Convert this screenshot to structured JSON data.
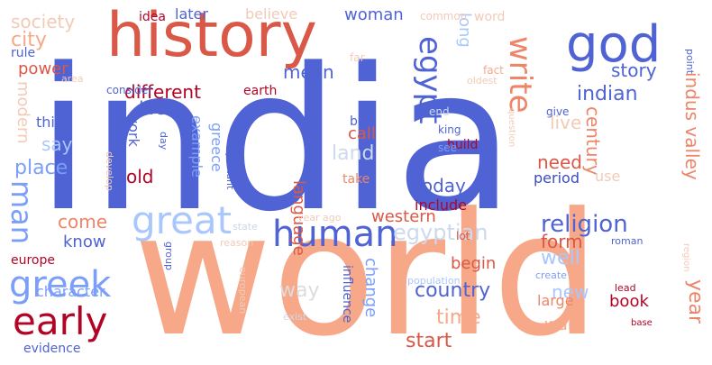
{
  "colors": {
    "blue_dark": "#3b4cc0",
    "blue": "#4f63d4",
    "blue_mid": "#7b9ff9",
    "blue_light": "#aac7fd",
    "blue_pale": "#cdd9ec",
    "grey": "#dddcdc",
    "peach_pale": "#f2cbb7",
    "peach": "#f7a889",
    "salmon": "#ee8468",
    "red": "#d95847",
    "red_dark": "#b40426"
  },
  "words": [
    {
      "text": "india",
      "color": "blue",
      "weight": 100
    },
    {
      "text": "world",
      "color": "peach",
      "weight": 88
    },
    {
      "text": "history",
      "color": "red",
      "weight": 40
    },
    {
      "text": "god",
      "color": "blue",
      "weight": 30
    },
    {
      "text": "human",
      "color": "blue",
      "weight": 22
    },
    {
      "text": "great",
      "color": "blue_light",
      "weight": 22
    },
    {
      "text": "greek",
      "color": "blue_mid",
      "weight": 19
    },
    {
      "text": "early",
      "color": "red_dark",
      "weight": 19
    },
    {
      "text": "egypt",
      "color": "blue",
      "weight": 18
    },
    {
      "text": "write",
      "color": "salmon",
      "weight": 18
    },
    {
      "text": "man",
      "color": "blue_mid",
      "weight": 17
    },
    {
      "text": "religion",
      "color": "blue",
      "weight": 13
    },
    {
      "text": "egyptian",
      "color": "blue_pale",
      "weight": 12
    },
    {
      "text": "different",
      "color": "red_dark",
      "weight": 11
    },
    {
      "text": "country",
      "color": "blue",
      "weight": 11
    },
    {
      "text": "indian",
      "color": "blue",
      "weight": 11
    },
    {
      "text": "society",
      "color": "peach_pale",
      "weight": 11
    },
    {
      "text": "city",
      "color": "peach",
      "weight": 11
    },
    {
      "text": "western",
      "color": "red",
      "weight": 10
    },
    {
      "text": "mean",
      "color": "blue",
      "weight": 10
    },
    {
      "text": "way",
      "color": "grey",
      "weight": 10
    },
    {
      "text": "start",
      "color": "red",
      "weight": 10
    },
    {
      "text": "today",
      "color": "blue",
      "weight": 10
    },
    {
      "text": "language",
      "color": "red",
      "weight": 10
    },
    {
      "text": "woman",
      "color": "blue",
      "weight": 9
    },
    {
      "text": "power",
      "color": "red",
      "weight": 9
    },
    {
      "text": "old",
      "color": "red_dark",
      "weight": 9
    },
    {
      "text": "life",
      "color": "blue",
      "weight": 9
    },
    {
      "text": "place",
      "color": "blue_mid",
      "weight": 9
    },
    {
      "text": "come",
      "color": "salmon",
      "weight": 9
    },
    {
      "text": "know",
      "color": "blue",
      "weight": 9
    },
    {
      "text": "story",
      "color": "blue",
      "weight": 9
    },
    {
      "text": "land",
      "color": "blue_pale",
      "weight": 9
    },
    {
      "text": "form",
      "color": "red",
      "weight": 9
    },
    {
      "text": "time",
      "color": "peach",
      "weight": 9
    },
    {
      "text": "need",
      "color": "red",
      "weight": 9
    },
    {
      "text": "well",
      "color": "blue_light",
      "weight": 9
    },
    {
      "text": "new",
      "color": "blue_light",
      "weight": 9
    },
    {
      "text": "live",
      "color": "peach_pale",
      "weight": 9
    },
    {
      "text": "year",
      "color": "salmon",
      "weight": 9
    },
    {
      "text": "begin",
      "color": "red",
      "weight": 8
    },
    {
      "text": "say",
      "color": "blue_light",
      "weight": 8
    },
    {
      "text": "century",
      "color": "salmon",
      "weight": 8
    },
    {
      "text": "indus valley",
      "color": "salmon",
      "weight": 8
    },
    {
      "text": "change",
      "color": "blue_mid",
      "weight": 8
    },
    {
      "text": "example",
      "color": "blue_mid",
      "weight": 8
    },
    {
      "text": "greece",
      "color": "blue_mid",
      "weight": 8
    },
    {
      "text": "work",
      "color": "blue",
      "weight": 8
    },
    {
      "text": "long",
      "color": "blue_light",
      "weight": 8
    },
    {
      "text": "modern",
      "color": "peach_pale",
      "weight": 8
    },
    {
      "text": "believe",
      "color": "peach_pale",
      "weight": 7
    },
    {
      "text": "character",
      "color": "blue_mid",
      "weight": 7
    },
    {
      "text": "period",
      "color": "blue_dark",
      "weight": 7
    },
    {
      "text": "large",
      "color": "salmon",
      "weight": 7
    },
    {
      "text": "war",
      "color": "peach",
      "weight": 7
    },
    {
      "text": "call",
      "color": "red",
      "weight": 7
    },
    {
      "text": "book",
      "color": "red_dark",
      "weight": 7
    },
    {
      "text": "include",
      "color": "red_dark",
      "weight": 7
    },
    {
      "text": "thing",
      "color": "blue",
      "weight": 7
    },
    {
      "text": "word",
      "color": "peach_pale",
      "weight": 6
    },
    {
      "text": "europe",
      "color": "red_dark",
      "weight": 6
    },
    {
      "text": "idea",
      "color": "red_dark",
      "weight": 6
    },
    {
      "text": "later",
      "color": "blue",
      "weight": 6
    },
    {
      "text": "rule",
      "color": "blue",
      "weight": 6
    },
    {
      "text": "earth",
      "color": "red_dark",
      "weight": 6
    },
    {
      "text": "use",
      "color": "peach_pale",
      "weight": 6
    },
    {
      "text": "influence",
      "color": "blue",
      "weight": 6
    },
    {
      "text": "take",
      "color": "salmon",
      "weight": 6
    },
    {
      "text": "build",
      "color": "red_dark",
      "weight": 6
    },
    {
      "text": "bc",
      "color": "blue",
      "weight": 6
    },
    {
      "text": "evidence",
      "color": "blue",
      "weight": 6
    },
    {
      "text": "far",
      "color": "peach_pale",
      "weight": 5
    },
    {
      "text": "common",
      "color": "peach_pale",
      "weight": 5
    },
    {
      "text": "consider",
      "color": "blue",
      "weight": 5
    },
    {
      "text": "fact",
      "color": "peach",
      "weight": 5
    },
    {
      "text": "area",
      "color": "peach_pale",
      "weight": 5
    },
    {
      "text": "oldest",
      "color": "peach_pale",
      "weight": 5
    },
    {
      "text": "point",
      "color": "blue",
      "weight": 5
    },
    {
      "text": "give",
      "color": "blue",
      "weight": 5
    },
    {
      "text": "end",
      "color": "blue_pale",
      "weight": 5
    },
    {
      "text": "king",
      "color": "blue",
      "weight": 5
    },
    {
      "text": "see",
      "color": "blue_mid",
      "weight": 5
    },
    {
      "text": "question",
      "color": "peach_pale",
      "weight": 5
    },
    {
      "text": "develop",
      "color": "peach_pale",
      "weight": 5
    },
    {
      "text": "important",
      "color": "blue",
      "weight": 5
    },
    {
      "text": "day",
      "color": "blue",
      "weight": 5
    },
    {
      "text": "big",
      "color": "blue",
      "weight": 5
    },
    {
      "text": "year ago",
      "color": "peach_pale",
      "weight": 5
    },
    {
      "text": "state",
      "color": "blue_pale",
      "weight": 5
    },
    {
      "text": "group",
      "color": "blue",
      "weight": 5
    },
    {
      "text": "reason",
      "color": "peach_pale",
      "weight": 5
    },
    {
      "text": "lot",
      "color": "red",
      "weight": 5
    },
    {
      "text": "roman",
      "color": "blue",
      "weight": 5
    },
    {
      "text": "region",
      "color": "peach_pale",
      "weight": 5
    },
    {
      "text": "population",
      "color": "blue_light",
      "weight": 5
    },
    {
      "text": "create",
      "color": "blue_mid",
      "weight": 5
    },
    {
      "text": "lead",
      "color": "red_dark",
      "weight": 5
    },
    {
      "text": "base",
      "color": "red_dark",
      "weight": 4
    },
    {
      "text": "exist",
      "color": "blue_pale",
      "weight": 5
    },
    {
      "text": "european",
      "color": "peach_pale",
      "weight": 5
    }
  ]
}
